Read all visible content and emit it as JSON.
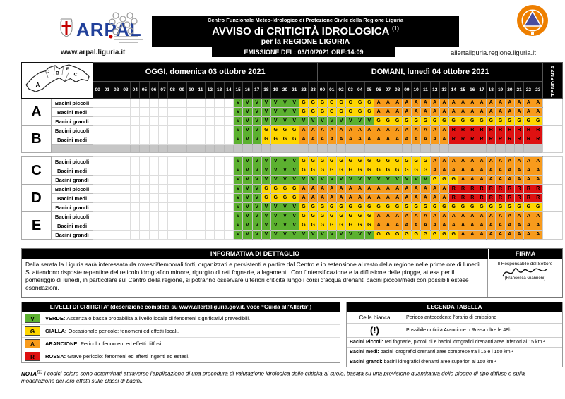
{
  "header": {
    "arpal_logo_text": "ARPAL",
    "arpal_url": "www.arpal.liguria.it",
    "title_small": "Centro Funzionale Meteo-Idrologico di Protezione Civile della Regione Liguria",
    "title_main": "AVVISO di CRITICITÀ IDROLOGICA",
    "title_sup": "(1)",
    "title_sub": "per la REGIONE LIGURIA",
    "emission": "EMISSIONE DEL: 03/10/2021 ORE:14:09",
    "allerta_url": "allertaliguria.regione.liguria.it"
  },
  "table": {
    "day_today": "OGGI, domenica 03 ottobre 2021",
    "day_tomorrow": "DOMANI, lunedì 04 ottobre 2021",
    "tendenza_label": "TENDENZA",
    "hours": [
      "00",
      "01",
      "02",
      "03",
      "04",
      "05",
      "06",
      "07",
      "08",
      "09",
      "10",
      "11",
      "12",
      "13",
      "14",
      "15",
      "16",
      "17",
      "18",
      "19",
      "20",
      "21",
      "22",
      "23"
    ],
    "colors": {
      "V": "#5CB130",
      "G": "#FFD600",
      "A": "#F89B1C",
      "R": "#DE1111",
      "N": "#C6C6C6"
    },
    "zones": [
      {
        "letter": "A",
        "rows": [
          {
            "label": "Bacini piccoli",
            "code": "...............VVVVVVVGGGGGGGGAAAAAAAAAAAAAAAAAA"
          },
          {
            "label": "Bacini medi",
            "code": "...............VVVVVVVGGGGGGGGAAAAAAAAAAAAAAAAAA"
          },
          {
            "label": "Bacini grandi",
            "code": "...............VVVVVVVVVVVVVVVGGGGGGGGGGGGGGGGGG"
          }
        ]
      },
      {
        "letter": "B",
        "rows": [
          {
            "label": "Bacini piccoli",
            "code": "...............VVVGGGGAAAAAAAAAAAAAAAARRRRRRRRRR"
          },
          {
            "label": "Bacini medi",
            "code": "...............VVVGGGGAAAAAAAAAAAAAAAARRRRRRRRRR"
          },
          {
            "label": "",
            "code": "NNNNNNNNNNNNNNNNNNNNNNNNNNNNNNNNNNNNNNNNNNNNNNNN"
          }
        ]
      },
      {
        "letter": "C",
        "rows": [
          {
            "label": "Bacini piccoli",
            "code": "...............VVVVVVVGGGGGGGGGGGGGGAAAAAAAAAAAA"
          },
          {
            "label": "Bacini medi",
            "code": "...............VVVVVVVGGGGGGGGGGGGGGAAAAAAAAAAAA"
          },
          {
            "label": "Bacini grandi",
            "code": "...............VVVVVVVVVVVVVVVVVVVVVGGGAAAAAAAAA"
          }
        ]
      },
      {
        "letter": "D",
        "rows": [
          {
            "label": "Bacini piccoli",
            "code": "...............VVVGGGGAAAAAAAAAAAAAAAARRRRRRRRRR"
          },
          {
            "label": "Bacini medi",
            "code": "...............VVVGGGGAAAAAAAAAAAAAAAARRRRRRRRRR"
          },
          {
            "label": "Bacini grandi",
            "code": "...............VVVVVVVGGGGGGGGGGGGGGGGGGGGGGGGGG"
          }
        ]
      },
      {
        "letter": "E",
        "rows": [
          {
            "label": "Bacini piccoli",
            "code": "...............VVVVVVVGGGGGGGGAAAAAAAAAAAAAAAAAA"
          },
          {
            "label": "Bacini medi",
            "code": "...............VVVVVVVGGGGGGGGAAAAAAAAAAAAAAAAAA"
          },
          {
            "label": "Bacini grandi",
            "code": "...............VVVVVVVVVVVVVVVGGGGGGGGGAAAAAAAAA"
          }
        ]
      }
    ]
  },
  "info": {
    "header": "INFORMATIVA DI DETTAGLIO",
    "firma_header": "FIRMA",
    "body": "Dalla serata la Liguria sarà interessata da rovesci/temporali forti, organizzati e persistenti a partire dal Centro e in estensione al resto della regione nelle prime ore di lunedì. Si attendono risposte repentine del reticolo idrografico minore, rigurgito di reti fognarie, allagamenti. Con l'intensificazione e la diffusione delle piogge, attesa per il pomeriggio di lunedì, in particolare sul Centro della regione, si potranno osservare ulteriori criticità lungo i corsi d'acqua drenanti bacini piccoli/medi con possibili estese esondazioni.",
    "firma_role": "Il Responsabile del Settore",
    "firma_name": "(Francesca Giannoni)"
  },
  "levels": {
    "header": "LIVELLI DI CRITICITA' (descrizione completa su www.allertaliguria.gov.it, voce “Guida all'Allerta”)",
    "items": [
      {
        "code": "V",
        "name": "VERDE:",
        "text": "Assenza o bassa probabilità a livello locale di fenomeni significativi prevedibili."
      },
      {
        "code": "G",
        "name": "GIALLA:",
        "text": "Occasionale pericolo: fenomeni ed effetti locali."
      },
      {
        "code": "A",
        "name": "ARANCIONE:",
        "text": "Pericolo: fenomeni ed effetti diffusi."
      },
      {
        "code": "R",
        "name": "ROSSA:",
        "text": "Grave pericolo: fenomeni ed effetti ingenti ed estesi."
      }
    ]
  },
  "legenda": {
    "header": "LEGENDA TABELLA",
    "rows": [
      {
        "key": "Cella bianca",
        "text": "Periodo antecedente l'orario di emissione"
      },
      {
        "key": "(!)",
        "text": "Possibile criticità Arancione o Rossa oltre le 48h"
      }
    ],
    "bacini": [
      {
        "name": "Bacini Piccoli:",
        "text": " reti fognarie, piccoli rii e bacini idrografici drenanti aree inferiori ai 15 km ²"
      },
      {
        "name": "Bacini medi:",
        "text": " bacini idrografici drenanti aree comprese tra i 15 e i 150 km ²"
      },
      {
        "name": "Bacini grandi:",
        "text": " bacini idrografici drenanti aree superiori ai 150 km ²"
      }
    ]
  },
  "nota": {
    "prefix": "NOTA",
    "sup": "(1)",
    "text": " I codici colore sono determinati attraverso l'applicazione di una procedura di valutazione idrologica delle criticità al suolo, basata su una previsione quantitativa delle piogge di tipo diffuso e sulla modellazione dei loro effetti sulle classi di bacini."
  }
}
